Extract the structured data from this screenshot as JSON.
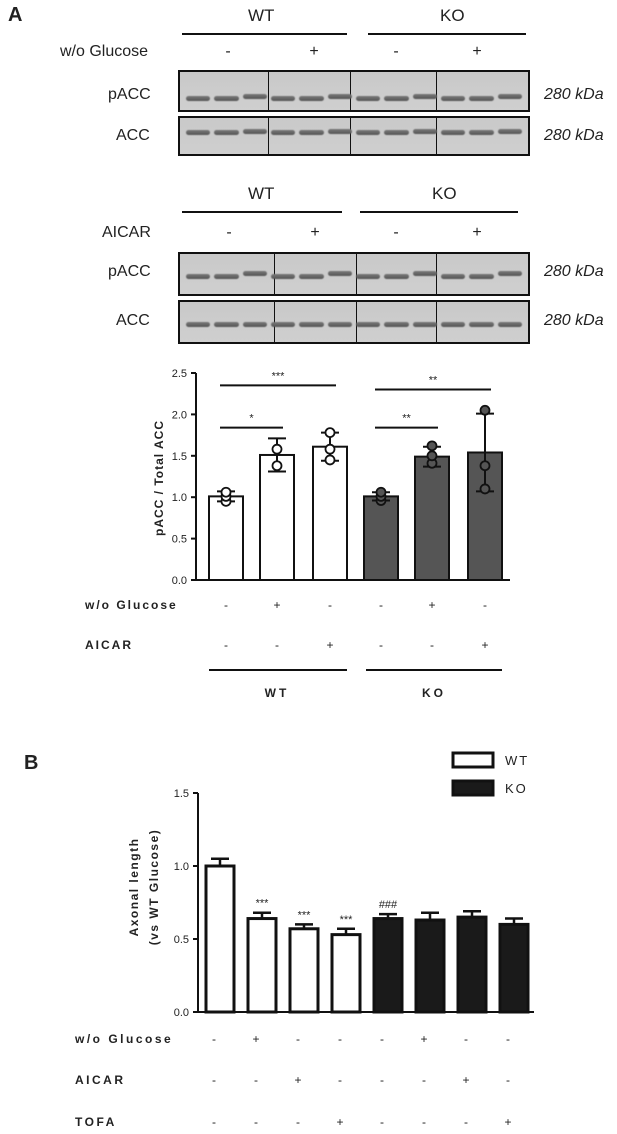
{
  "panel_a": {
    "label": "A",
    "blot1": {
      "groups": [
        "WT",
        "KO"
      ],
      "condition": {
        "label": "w/o Glucose",
        "signs": [
          "-",
          "+",
          "-",
          "+"
        ]
      },
      "rows": [
        {
          "label": "pACC",
          "kda": "280 kDa"
        },
        {
          "label": "ACC",
          "kda": "280 kDa"
        }
      ]
    },
    "blot2": {
      "groups": [
        "WT",
        "KO"
      ],
      "condition": {
        "label": "AICAR",
        "signs": [
          "-",
          "+",
          "-",
          "+"
        ]
      },
      "rows": [
        {
          "label": "pACC",
          "kda": "280 kDa"
        },
        {
          "label": "ACC",
          "kda": "280 kDa"
        }
      ]
    }
  },
  "panel_b": {
    "label": "B"
  },
  "chart_data": [
    {
      "type": "bar",
      "ylabel": "pACC / Total ACC",
      "ylim": [
        0,
        2.5
      ],
      "yticks": [
        "0.0",
        "0.5",
        "1.0",
        "1.5",
        "2.0",
        "2.5"
      ],
      "bars": [
        {
          "value": 1.01,
          "error": 0.06,
          "fill": "#ffffff",
          "points": [
            0.95,
            1.01,
            1.06
          ]
        },
        {
          "value": 1.51,
          "error": 0.2,
          "fill": "#ffffff",
          "points": [
            1.38,
            1.58
          ]
        },
        {
          "value": 1.61,
          "error": 0.17,
          "fill": "#ffffff",
          "points": [
            1.45,
            1.58,
            1.78
          ]
        },
        {
          "value": 1.01,
          "error": 0.05,
          "fill": "#555555",
          "points": [
            0.96,
            1.01,
            1.06
          ]
        },
        {
          "value": 1.49,
          "error": 0.12,
          "fill": "#555555",
          "points": [
            1.41,
            1.5,
            1.62
          ]
        },
        {
          "value": 1.54,
          "error": 0.47,
          "fill": "#555555",
          "points": [
            1.1,
            1.38,
            2.05
          ]
        }
      ],
      "significance": [
        {
          "text": "***",
          "from": 0,
          "to": 2,
          "y": 2.35
        },
        {
          "text": "*",
          "from": 0,
          "to": 1,
          "y": 1.84
        },
        {
          "text": "**",
          "from": 3,
          "to": 5,
          "y": 2.3
        },
        {
          "text": "**",
          "from": 3,
          "to": 4,
          "y": 1.84
        }
      ],
      "conditions": [
        {
          "label": "w/o Glucose",
          "signs": [
            "-",
            "+",
            "-",
            "-",
            "+",
            "-"
          ]
        },
        {
          "label": "AICAR",
          "signs": [
            "-",
            "-",
            "+",
            "-",
            "-",
            "+"
          ]
        }
      ],
      "groups": [
        "WT",
        "KO"
      ]
    },
    {
      "type": "bar",
      "ylabel": "Axonal length",
      "ylabel2": "(vs WT Glucose)",
      "ylim": [
        0,
        1.5
      ],
      "yticks": [
        "0.0",
        "0.5",
        "1.0",
        "1.5"
      ],
      "legend": [
        {
          "name": "WT",
          "fill": "#ffffff"
        },
        {
          "name": "KO",
          "fill": "#1a1a1a"
        }
      ],
      "bars": [
        {
          "value": 1.0,
          "error": 0.05,
          "series": "WT",
          "annot": ""
        },
        {
          "value": 0.64,
          "error": 0.04,
          "series": "WT",
          "annot": "***"
        },
        {
          "value": 0.57,
          "error": 0.03,
          "series": "WT",
          "annot": "***"
        },
        {
          "value": 0.53,
          "error": 0.04,
          "series": "WT",
          "annot": "***"
        },
        {
          "value": 0.64,
          "error": 0.03,
          "series": "KO",
          "annot": "###"
        },
        {
          "value": 0.63,
          "error": 0.05,
          "series": "KO",
          "annot": ""
        },
        {
          "value": 0.65,
          "error": 0.04,
          "series": "KO",
          "annot": ""
        },
        {
          "value": 0.6,
          "error": 0.04,
          "series": "KO",
          "annot": ""
        }
      ],
      "conditions": [
        {
          "label": "w/o Glucose",
          "signs": [
            "-",
            "+",
            "-",
            "-",
            "-",
            "+",
            "-",
            "-"
          ]
        },
        {
          "label": "AICAR",
          "signs": [
            "-",
            "-",
            "+",
            "-",
            "-",
            "-",
            "+",
            "-"
          ]
        },
        {
          "label": "TOFA",
          "signs": [
            "-",
            "-",
            "-",
            "+",
            "-",
            "-",
            "-",
            "+"
          ]
        }
      ]
    }
  ]
}
